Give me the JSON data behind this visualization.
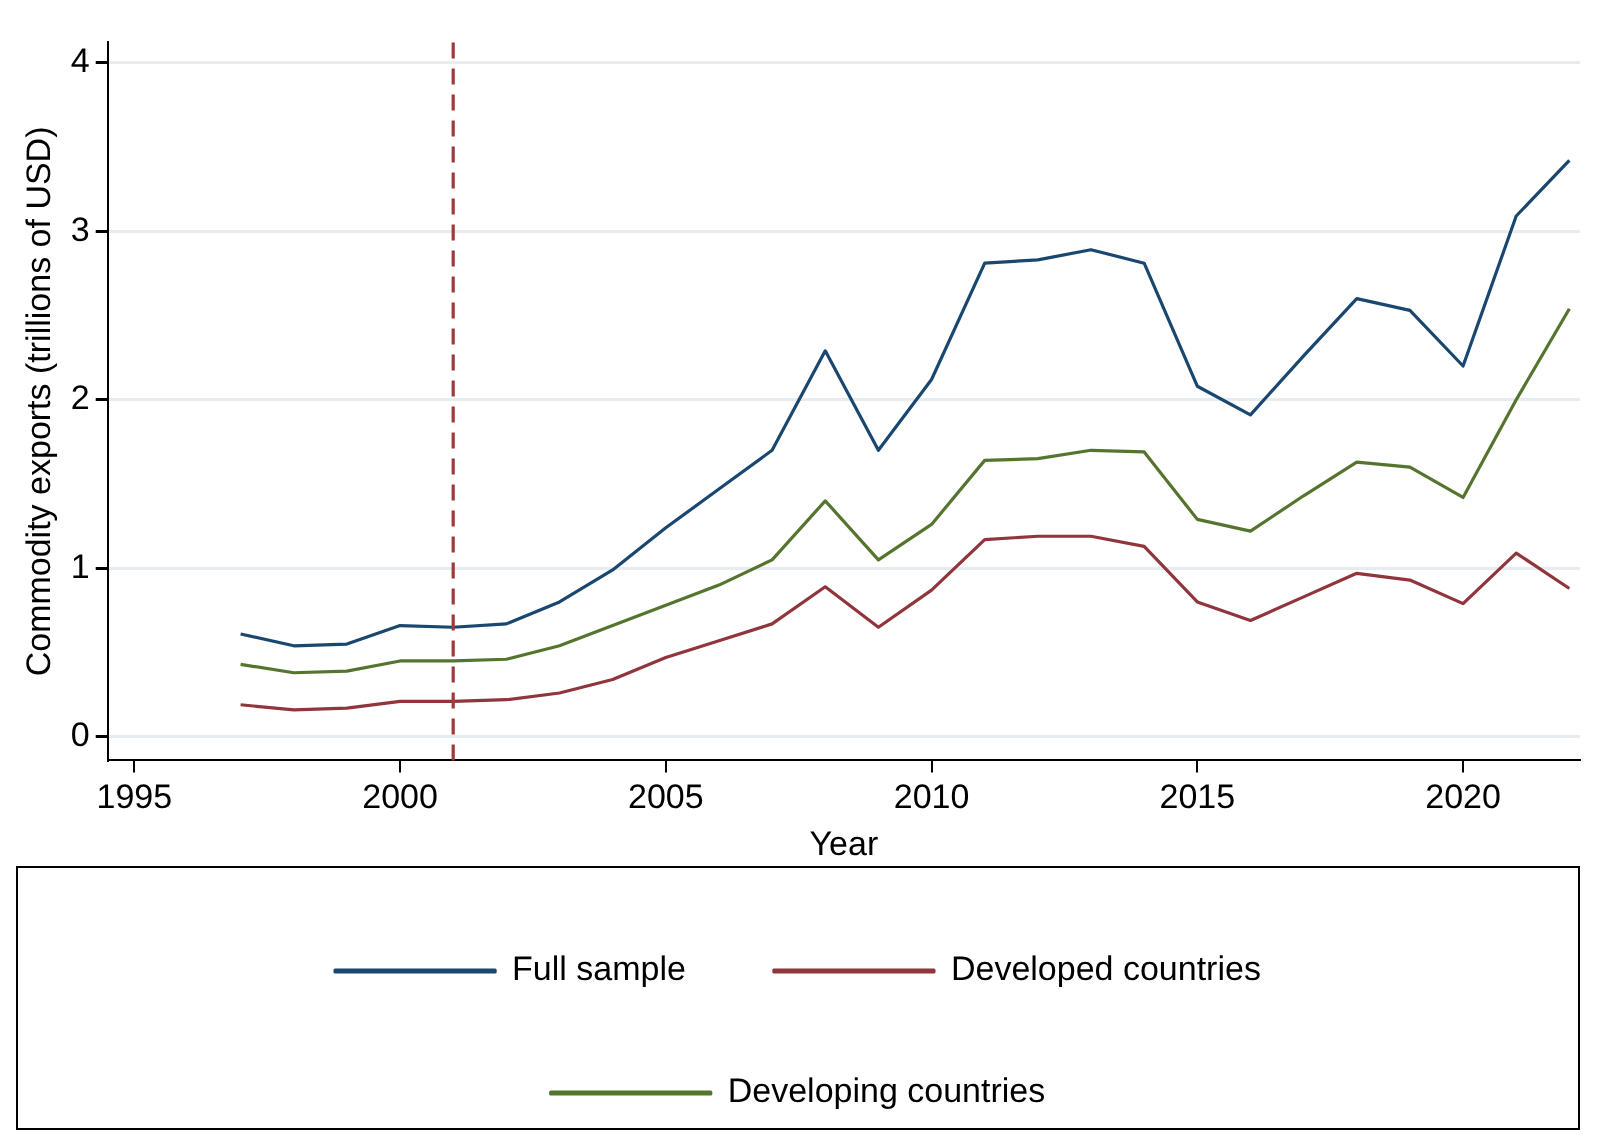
{
  "chart_data": {
    "type": "line",
    "xlabel": "Year",
    "ylabel": "Commodity exports (trillions of USD)",
    "x": [
      1997,
      1998,
      1999,
      2000,
      2001,
      2002,
      2003,
      2004,
      2005,
      2006,
      2007,
      2008,
      2009,
      2010,
      2011,
      2012,
      2013,
      2014,
      2015,
      2016,
      2017,
      2018,
      2019,
      2020,
      2021,
      2022
    ],
    "series": [
      {
        "name": "Full sample",
        "color": "#1a476f",
        "values": [
          0.61,
          0.54,
          0.55,
          0.66,
          0.65,
          0.67,
          0.8,
          0.99,
          1.24,
          1.47,
          1.7,
          2.29,
          1.7,
          2.12,
          2.81,
          2.83,
          2.89,
          2.81,
          2.08,
          1.91,
          2.26,
          2.6,
          2.53,
          2.2,
          3.09,
          3.42
        ]
      },
      {
        "name": "Developed countries",
        "color": "#90353b",
        "values": [
          0.19,
          0.16,
          0.17,
          0.21,
          0.21,
          0.22,
          0.26,
          0.34,
          0.47,
          0.57,
          0.67,
          0.89,
          0.65,
          0.87,
          1.17,
          1.19,
          1.19,
          1.13,
          0.8,
          0.69,
          0.83,
          0.97,
          0.93,
          0.79,
          1.09,
          0.88
        ]
      },
      {
        "name": "Developing countries",
        "color": "#55752f",
        "values": [
          0.43,
          0.38,
          0.39,
          0.45,
          0.45,
          0.46,
          0.54,
          0.66,
          0.78,
          0.9,
          1.05,
          1.4,
          1.05,
          1.26,
          1.64,
          1.65,
          1.7,
          1.69,
          1.29,
          1.22,
          1.43,
          1.63,
          1.6,
          1.42,
          2.0,
          2.54
        ]
      }
    ],
    "xlim": [
      1994.5,
      2022.2
    ],
    "xticks": [
      1995,
      2000,
      2005,
      2010,
      2015,
      2020
    ],
    "ylim": [
      -0.14,
      4.12
    ],
    "yticks": [
      0,
      1,
      2,
      3,
      4
    ],
    "ref_lines": [
      {
        "axis": "x",
        "value": 2001,
        "color": "#a03a3a",
        "line_style": "dashed"
      }
    ],
    "grid": "y",
    "legend": "bottom",
    "marker": "none",
    "line_style": "solid"
  }
}
